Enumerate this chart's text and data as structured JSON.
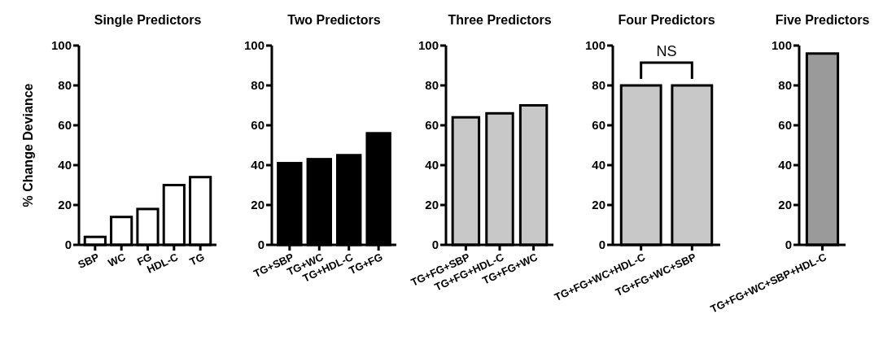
{
  "chart_data": [
    {
      "type": "bar",
      "title": "Single Predictors",
      "ylabel": "% Change Deviance",
      "categories": [
        "SBP",
        "WC",
        "FG",
        "HDL-C",
        "TG"
      ],
      "values": [
        4,
        14,
        18,
        30,
        34
      ],
      "color": "#ffffff",
      "ylim": [
        0,
        100
      ],
      "yticks": [
        0,
        20,
        40,
        60,
        80,
        100
      ],
      "grid": false
    },
    {
      "type": "bar",
      "title": "Two Predictors",
      "categories": [
        "TG+SBP",
        "TG+WC",
        "TG+HDL-C",
        "TG+FG"
      ],
      "values": [
        41,
        43,
        45,
        56
      ],
      "color": "#000000",
      "ylim": [
        0,
        100
      ],
      "yticks": [
        0,
        20,
        40,
        60,
        80,
        100
      ],
      "grid": false
    },
    {
      "type": "bar",
      "title": "Three Predictors",
      "categories": [
        "TG+FG+SBP",
        "TG+FG+HDL-C",
        "TG+FG+WC"
      ],
      "values": [
        64,
        66,
        70
      ],
      "color": "#c8c8c8",
      "ylim": [
        0,
        100
      ],
      "yticks": [
        0,
        20,
        40,
        60,
        80,
        100
      ],
      "grid": false
    },
    {
      "type": "bar",
      "title": "Four Predictors",
      "categories": [
        "TG+FG+WC+HDL-C",
        "TG+FG+WC+SBP"
      ],
      "values": [
        80,
        80
      ],
      "color": "#c8c8c8",
      "ylim": [
        0,
        100
      ],
      "yticks": [
        0,
        20,
        40,
        60,
        80,
        100
      ],
      "grid": false,
      "annotations": [
        "NS"
      ]
    },
    {
      "type": "bar",
      "title": "Five Predictors",
      "categories": [
        "TG+FG+WC+SBP+HDL-C"
      ],
      "values": [
        96
      ],
      "color": "#9a9a9a",
      "ylim": [
        0,
        100
      ],
      "yticks": [
        0,
        20,
        40,
        60,
        80,
        100
      ],
      "grid": false
    }
  ]
}
